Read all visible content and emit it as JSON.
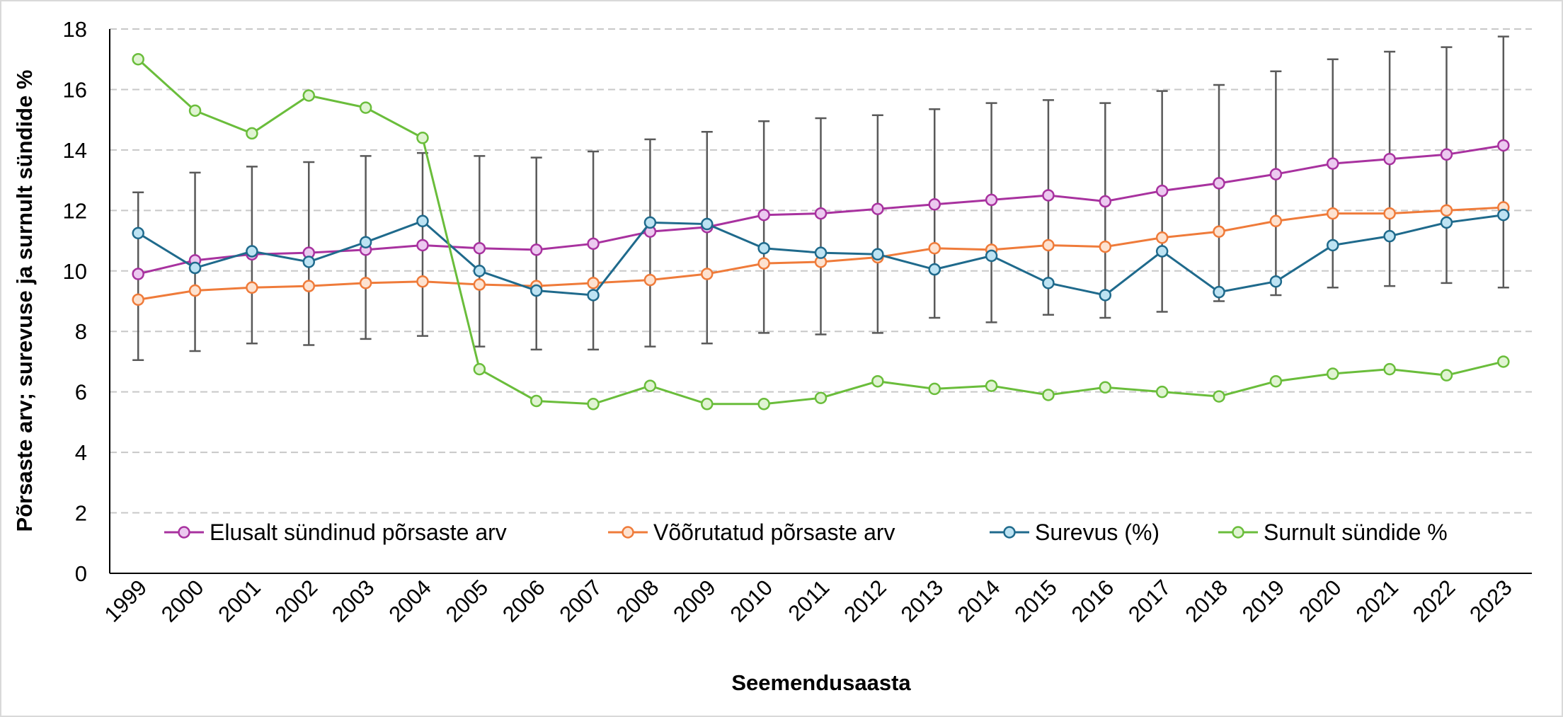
{
  "chart_data": {
    "type": "line",
    "x_label": "Seemendusaasta",
    "y_label": "Põrsaste arv; surevuse ja surnult sündide %",
    "categories": [
      "1999",
      "2000",
      "2001",
      "2002",
      "2003",
      "2004",
      "2005",
      "2006",
      "2007",
      "2008",
      "2009",
      "2010",
      "2011",
      "2012",
      "2013",
      "2014",
      "2015",
      "2016",
      "2017",
      "2018",
      "2019",
      "2020",
      "2021",
      "2022",
      "2023"
    ],
    "ylim": [
      0,
      18
    ],
    "yticks": [
      0,
      2,
      4,
      6,
      8,
      10,
      12,
      14,
      16,
      18
    ],
    "grid": true,
    "error_color": "#595959",
    "series": [
      {
        "name": "Elusalt sündinud põrsaste arv",
        "color": "#a8329f",
        "marker_fill": "#ecc9f0",
        "values": [
          9.9,
          10.35,
          10.55,
          10.6,
          10.7,
          10.85,
          10.75,
          10.7,
          10.9,
          11.3,
          11.45,
          11.85,
          11.9,
          12.05,
          12.2,
          12.35,
          12.5,
          12.3,
          12.65,
          12.9,
          13.2,
          13.55,
          13.7,
          13.85,
          14.15
        ],
        "error_plus": [
          2.7,
          2.9,
          2.9,
          3.0,
          3.1,
          3.05,
          3.05,
          3.05,
          3.05,
          3.05,
          3.15,
          3.1,
          3.15,
          3.1,
          3.15,
          3.2,
          3.15,
          3.25,
          3.3,
          3.25,
          3.4,
          3.45,
          3.55,
          3.55,
          3.6
        ],
        "error_minus": [
          2.85,
          3.0,
          2.95,
          3.05,
          2.95,
          3.0,
          3.25,
          3.3,
          3.5,
          3.8,
          3.85,
          3.9,
          4.0,
          4.1,
          3.75,
          4.05,
          3.95,
          3.85,
          4.0,
          3.9,
          4.0,
          4.1,
          4.2,
          4.25,
          4.7
        ]
      },
      {
        "name": "Võõrutatud põrsaste arv",
        "color": "#ef7b3a",
        "marker_fill": "#fde2d0",
        "values": [
          9.05,
          9.35,
          9.45,
          9.5,
          9.6,
          9.65,
          9.55,
          9.5,
          9.6,
          9.7,
          9.9,
          10.25,
          10.3,
          10.45,
          10.75,
          10.7,
          10.85,
          10.8,
          11.1,
          11.3,
          11.65,
          11.9,
          11.9,
          12.0,
          12.1
        ]
      },
      {
        "name": "Surevus (%)",
        "color": "#1f6a8c",
        "marker_fill": "#bde3f3",
        "values": [
          11.25,
          10.1,
          10.65,
          10.3,
          10.95,
          11.65,
          10.0,
          9.35,
          9.2,
          11.6,
          11.55,
          10.75,
          10.6,
          10.55,
          10.05,
          10.5,
          9.6,
          9.2,
          10.65,
          9.3,
          9.65,
          10.85,
          11.15,
          11.6,
          11.85
        ]
      },
      {
        "name": "Surnult sündide %",
        "color": "#6abd3b",
        "marker_fill": "#e0f4d2",
        "values": [
          17.0,
          15.3,
          14.55,
          15.8,
          15.4,
          14.4,
          6.75,
          5.7,
          5.6,
          6.2,
          5.6,
          5.6,
          5.8,
          6.35,
          6.1,
          6.2,
          5.9,
          6.15,
          6.0,
          5.85,
          6.35,
          6.6,
          6.75,
          6.55,
          7.0
        ]
      }
    ]
  }
}
